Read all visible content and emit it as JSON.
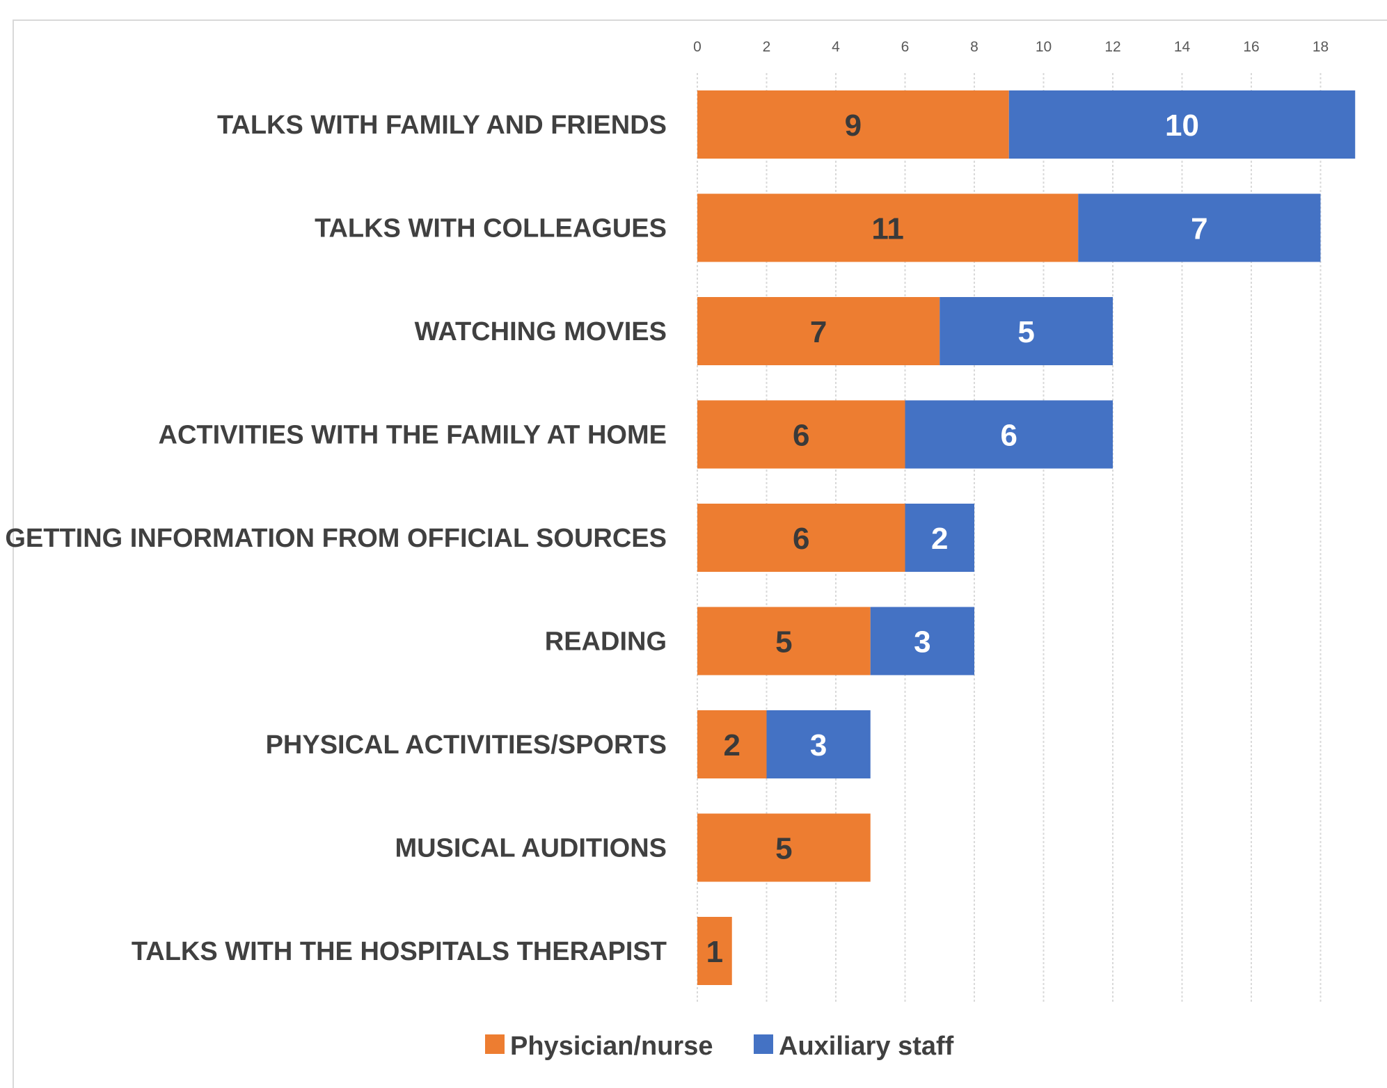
{
  "chart_data": {
    "type": "bar",
    "orientation": "horizontal",
    "stacked": true,
    "title": "",
    "xlabel": "",
    "ylabel": "",
    "xlim": [
      0,
      19
    ],
    "xticks": [
      0,
      2,
      4,
      6,
      8,
      10,
      12,
      14,
      16,
      18
    ],
    "grid": true,
    "legend_position": "bottom",
    "categories": [
      "TALKS WITH FAMILY AND FRIENDS",
      "TALKS WITH COLLEAGUES",
      "WATCHING MOVIES",
      "ACTIVITIES WITH THE FAMILY AT HOME",
      "GETTING INFORMATION FROM OFFICIAL SOURCES",
      "READING",
      "PHYSICAL ACTIVITIES/SPORTS",
      "MUSICAL AUDITIONS",
      "TALKS WITH THE HOSPITALS THERAPIST"
    ],
    "series": [
      {
        "name": "Physician/nurse",
        "color": "#ED7D31",
        "label_color": "#3a3a3a",
        "values": [
          9,
          11,
          7,
          6,
          6,
          5,
          2,
          5,
          1
        ]
      },
      {
        "name": "Auxiliary staff",
        "color": "#4472C4",
        "label_color": "#ffffff",
        "values": [
          10,
          7,
          5,
          6,
          2,
          3,
          3,
          0,
          0
        ]
      }
    ]
  }
}
